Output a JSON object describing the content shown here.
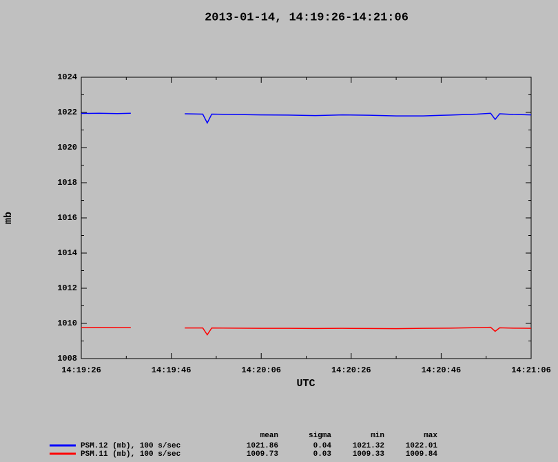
{
  "chart_data": {
    "type": "line",
    "title": "2013-01-14, 14:19:26-14:21:06",
    "x_label": "UTC",
    "y_label": "mb",
    "x": [
      "14:19:26",
      "14:19:30",
      "14:19:34",
      "14:19:37",
      "14:19:42",
      "14:19:49",
      "14:19:53",
      "14:19:54",
      "14:19:55",
      "14:20:00",
      "14:20:06",
      "14:20:12",
      "14:20:18",
      "14:20:24",
      "14:20:30",
      "14:20:36",
      "14:20:42",
      "14:20:48",
      "14:20:54",
      "14:20:57",
      "14:20:58",
      "14:20:59",
      "14:21:02",
      "14:21:06"
    ],
    "series": [
      {
        "name": "PSM.12 (mb), 100 s/sec",
        "color": "#0000ff",
        "values": [
          1021.94,
          1021.95,
          1021.93,
          1021.95,
          null,
          1021.92,
          1021.9,
          1021.4,
          1021.9,
          1021.88,
          1021.86,
          1021.85,
          1021.82,
          1021.86,
          1021.84,
          1021.8,
          1021.8,
          1021.85,
          1021.9,
          1021.95,
          1021.6,
          1021.92,
          1021.88,
          1021.86
        ],
        "stats": [
          1021.86,
          0.04,
          1021.32,
          1022.01
        ]
      },
      {
        "name": "PSM.11 (mb), 100 s/sec",
        "color": "#ff0000",
        "values": [
          1009.76,
          1009.77,
          1009.76,
          1009.76,
          null,
          1009.74,
          1009.74,
          1009.35,
          1009.74,
          1009.73,
          1009.72,
          1009.72,
          1009.71,
          1009.72,
          1009.71,
          1009.7,
          1009.72,
          1009.73,
          1009.76,
          1009.78,
          1009.55,
          1009.75,
          1009.73,
          1009.72
        ],
        "stats": [
          1009.73,
          0.03,
          1009.33,
          1009.84
        ]
      }
    ],
    "stats_headers": [
      "mean",
      "sigma",
      "min",
      "max"
    ],
    "xlim": [
      "14:19:26",
      "14:21:06"
    ],
    "xticks": [
      "14:19:26",
      "14:19:46",
      "14:20:06",
      "14:20:26",
      "14:20:46",
      "14:21:06"
    ],
    "ylim": [
      1008,
      1024
    ],
    "yticks": [
      1008,
      1010,
      1012,
      1014,
      1016,
      1018,
      1020,
      1022,
      1024
    ],
    "grid": false
  }
}
